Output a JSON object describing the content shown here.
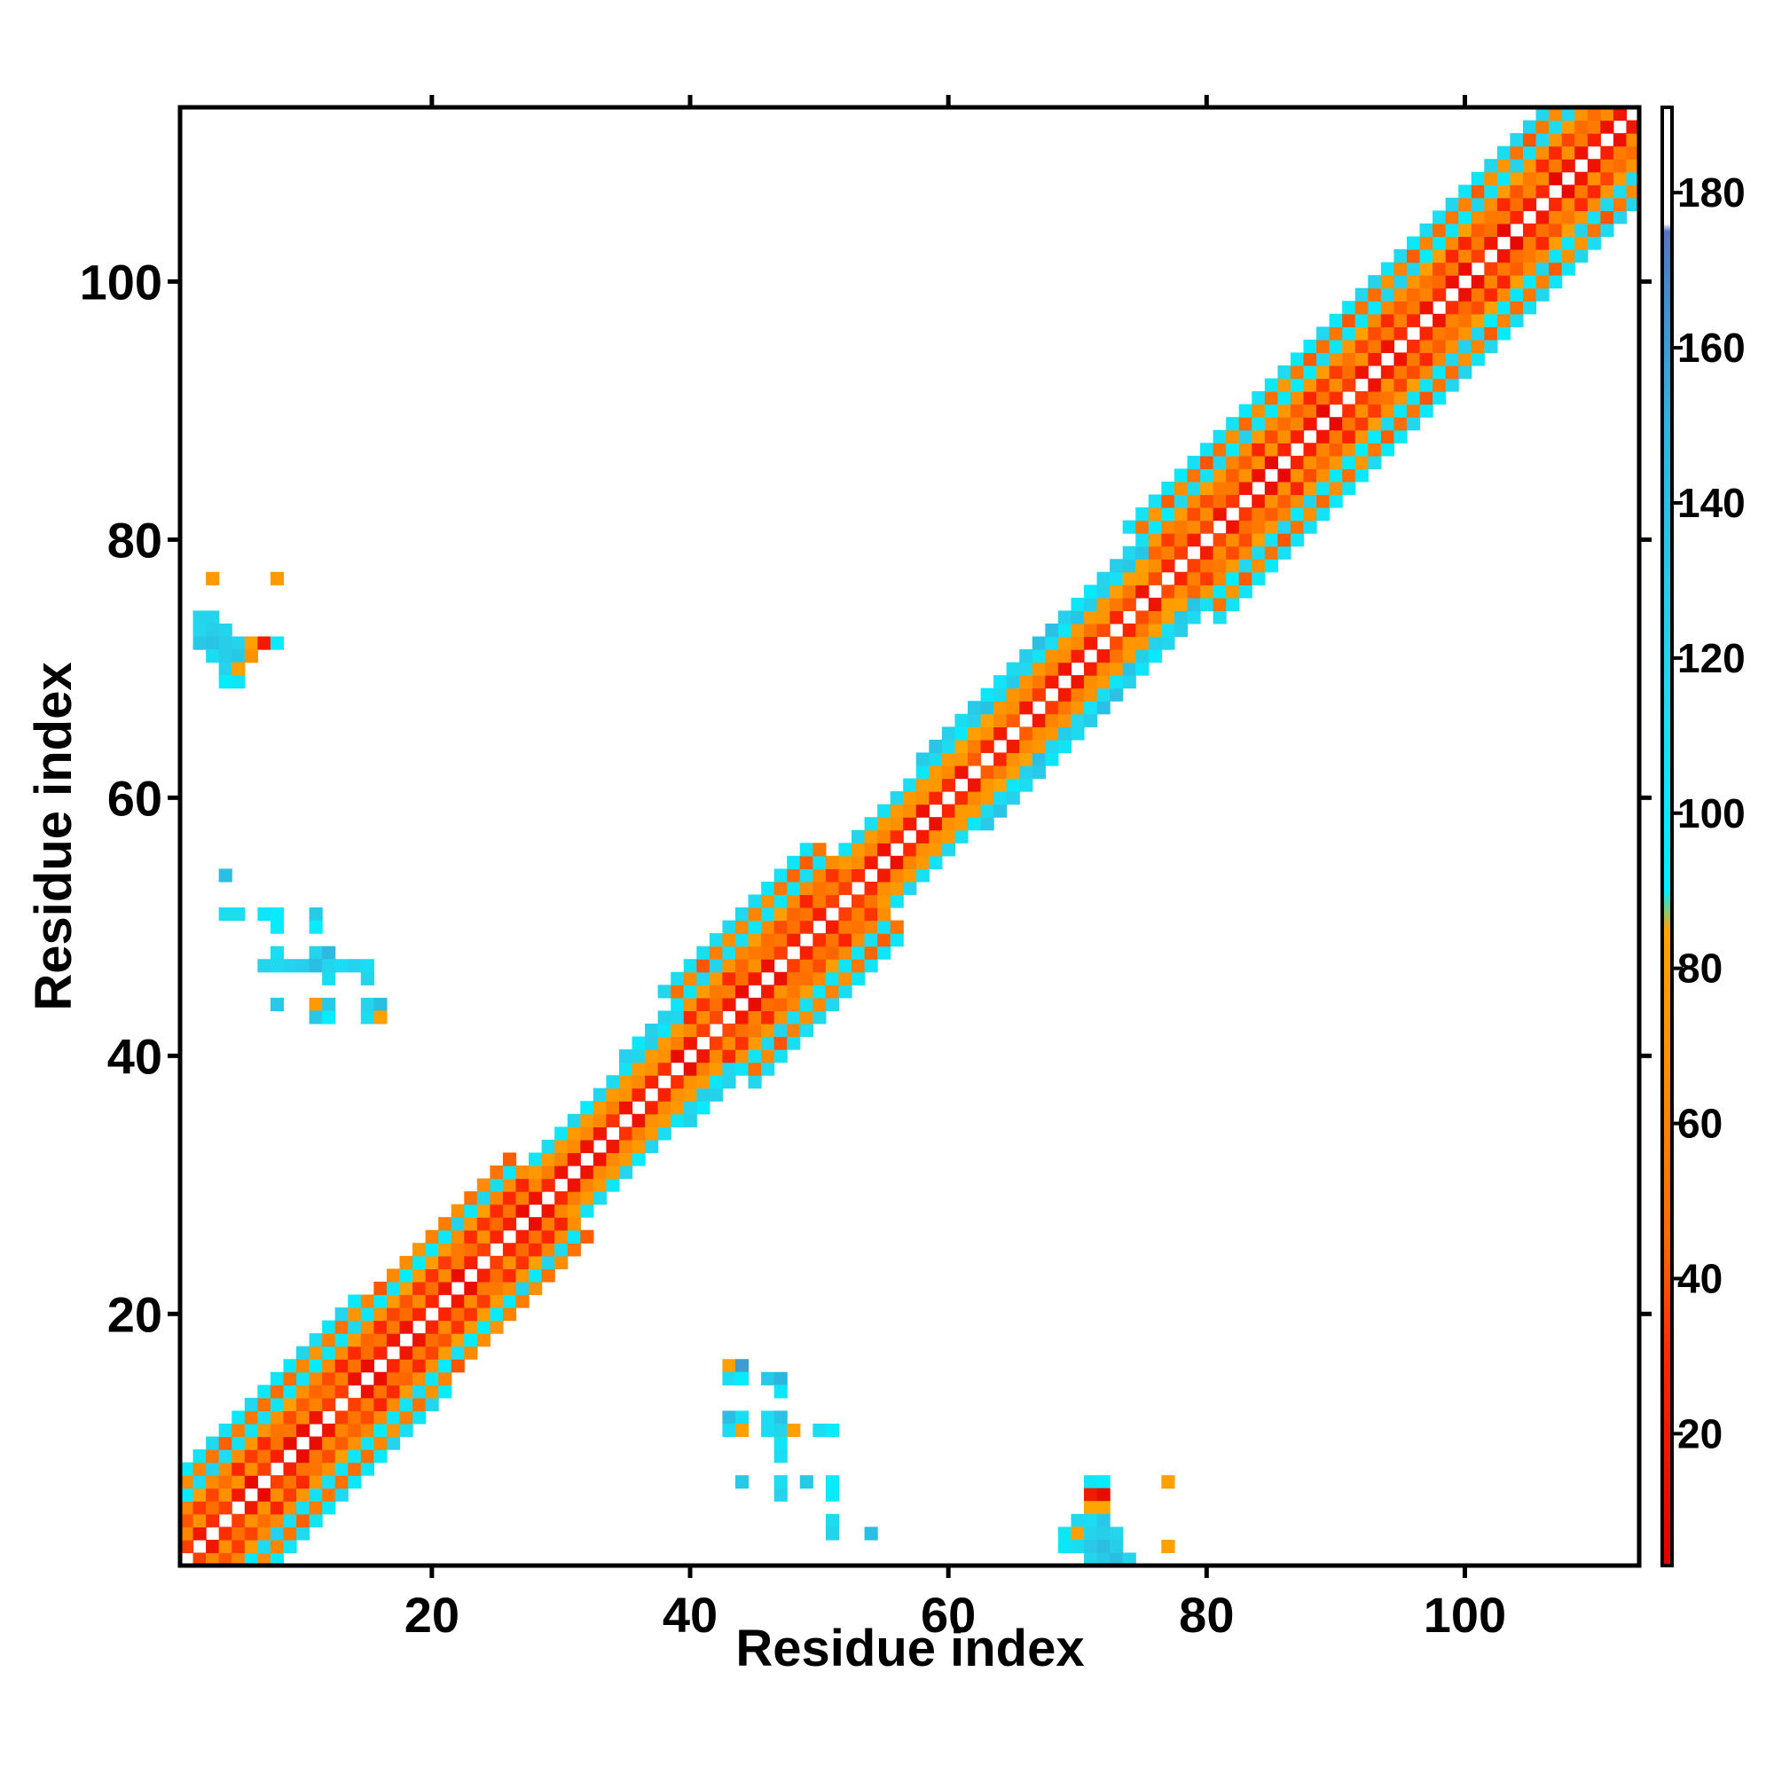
{
  "chart_data": {
    "type": "heatmap",
    "title": "",
    "xlabel": "Residue index",
    "ylabel": "Residue index",
    "xlim": [
      1,
      113
    ],
    "ylim": [
      1,
      113
    ],
    "x_ticks": [
      20,
      40,
      60,
      80,
      100
    ],
    "y_ticks": [
      20,
      40,
      60,
      80,
      100
    ],
    "grid": false,
    "colorbar": {
      "range": [
        3,
        191
      ],
      "ticks": [
        20,
        40,
        60,
        80,
        100,
        120,
        140,
        160,
        180
      ],
      "position": "right",
      "stops": [
        {
          "value": 3,
          "color": "#e00000"
        },
        {
          "value": 30,
          "color": "#ff2a00"
        },
        {
          "value": 45,
          "color": "#ff6a00"
        },
        {
          "value": 65,
          "color": "#ff8c00"
        },
        {
          "value": 85,
          "color": "#ffa500"
        },
        {
          "value": 90,
          "color": "#00f0ff"
        },
        {
          "value": 115,
          "color": "#22d8ee"
        },
        {
          "value": 150,
          "color": "#2fb4de"
        },
        {
          "value": 175,
          "color": "#5577bb"
        },
        {
          "value": 176,
          "color": "#ffffff"
        },
        {
          "value": 191,
          "color": "#ffffff"
        }
      ]
    },
    "diagonal_band": {
      "segments": [
        {
          "start": 1,
          "end": 18,
          "half_width": 7,
          "ss": "helix"
        },
        {
          "start": 18,
          "end": 29,
          "half_width": 6,
          "ss": "helix"
        },
        {
          "start": 29,
          "end": 37,
          "half_width": 4,
          "ss": "coil"
        },
        {
          "start": 37,
          "end": 41,
          "half_width": 5,
          "ss": "coil"
        },
        {
          "start": 41,
          "end": 53,
          "half_width": 7,
          "ss": "helix"
        },
        {
          "start": 53,
          "end": 60,
          "half_width": 4,
          "ss": "coil"
        },
        {
          "start": 60,
          "end": 70,
          "half_width": 5,
          "ss": "mixed"
        },
        {
          "start": 70,
          "end": 77,
          "half_width": 5,
          "ss": "mixed"
        },
        {
          "start": 77,
          "end": 87,
          "half_width": 7,
          "ss": "helix"
        },
        {
          "start": 87,
          "end": 113,
          "half_width": 7,
          "ss": "helix"
        }
      ]
    },
    "off_diagonal_cells": [
      [
        3,
        77,
        75
      ],
      [
        8,
        77,
        75
      ],
      [
        2,
        74,
        120
      ],
      [
        3,
        74,
        120
      ],
      [
        2,
        73,
        115
      ],
      [
        3,
        73,
        125
      ],
      [
        4,
        73,
        120
      ],
      [
        2,
        72,
        130
      ],
      [
        3,
        72,
        135
      ],
      [
        4,
        72,
        125
      ],
      [
        5,
        72,
        120
      ],
      [
        6,
        72,
        80
      ],
      [
        7,
        72,
        20
      ],
      [
        8,
        72,
        95
      ],
      [
        3,
        71,
        110
      ],
      [
        4,
        71,
        125
      ],
      [
        5,
        71,
        130
      ],
      [
        6,
        71,
        70
      ],
      [
        4,
        70,
        120
      ],
      [
        5,
        70,
        80
      ],
      [
        4,
        69,
        95
      ],
      [
        5,
        69,
        100
      ],
      [
        4,
        54,
        140
      ],
      [
        4,
        51,
        110
      ],
      [
        5,
        51,
        110
      ],
      [
        7,
        51,
        100
      ],
      [
        8,
        51,
        95
      ],
      [
        11,
        51,
        130
      ],
      [
        8,
        50,
        95
      ],
      [
        11,
        50,
        95
      ],
      [
        8,
        48,
        110
      ],
      [
        11,
        48,
        120
      ],
      [
        12,
        48,
        145
      ],
      [
        7,
        47,
        120
      ],
      [
        8,
        47,
        115
      ],
      [
        9,
        47,
        120
      ],
      [
        10,
        47,
        125
      ],
      [
        11,
        47,
        140
      ],
      [
        12,
        47,
        120
      ],
      [
        13,
        47,
        110
      ],
      [
        14,
        47,
        120
      ],
      [
        15,
        47,
        110
      ],
      [
        12,
        46,
        110
      ],
      [
        15,
        46,
        120
      ],
      [
        8,
        44,
        130
      ],
      [
        11,
        44,
        75
      ],
      [
        12,
        44,
        130
      ],
      [
        15,
        44,
        120
      ],
      [
        16,
        44,
        140
      ],
      [
        11,
        43,
        130
      ],
      [
        12,
        43,
        95
      ],
      [
        15,
        43,
        110
      ],
      [
        16,
        43,
        80
      ],
      [
        43,
        16,
        80
      ],
      [
        44,
        16,
        160
      ],
      [
        43,
        15,
        110
      ],
      [
        44,
        15,
        95
      ],
      [
        46,
        15,
        130
      ],
      [
        47,
        15,
        150
      ],
      [
        47,
        14,
        100
      ],
      [
        43,
        12,
        140
      ],
      [
        44,
        12,
        110
      ],
      [
        46,
        12,
        110
      ],
      [
        47,
        12,
        135
      ],
      [
        43,
        11,
        110
      ],
      [
        44,
        11,
        80
      ],
      [
        46,
        11,
        110
      ],
      [
        47,
        11,
        120
      ],
      [
        48,
        11,
        80
      ],
      [
        50,
        11,
        110
      ],
      [
        51,
        11,
        95
      ],
      [
        47,
        10,
        100
      ],
      [
        47,
        9,
        110
      ],
      [
        44,
        7,
        130
      ],
      [
        47,
        7,
        110
      ],
      [
        49,
        7,
        130
      ],
      [
        51,
        7,
        95
      ],
      [
        47,
        6,
        120
      ],
      [
        51,
        6,
        95
      ],
      [
        51,
        4,
        110
      ],
      [
        51,
        3,
        120
      ],
      [
        54,
        3,
        140
      ],
      [
        71,
        7,
        100
      ],
      [
        72,
        7,
        95
      ],
      [
        77,
        7,
        80
      ],
      [
        71,
        6,
        20
      ],
      [
        72,
        6,
        10
      ],
      [
        71,
        5,
        85
      ],
      [
        72,
        5,
        85
      ],
      [
        70,
        4,
        115
      ],
      [
        71,
        4,
        110
      ],
      [
        72,
        4,
        130
      ],
      [
        69,
        3,
        100
      ],
      [
        70,
        3,
        80
      ],
      [
        71,
        3,
        120
      ],
      [
        72,
        3,
        125
      ],
      [
        73,
        3,
        120
      ],
      [
        69,
        2,
        100
      ],
      [
        70,
        2,
        110
      ],
      [
        71,
        2,
        130
      ],
      [
        72,
        2,
        140
      ],
      [
        73,
        2,
        125
      ],
      [
        71,
        1,
        120
      ],
      [
        72,
        1,
        130
      ],
      [
        73,
        1,
        140
      ],
      [
        74,
        1,
        120
      ],
      [
        77,
        2,
        80
      ]
    ]
  }
}
